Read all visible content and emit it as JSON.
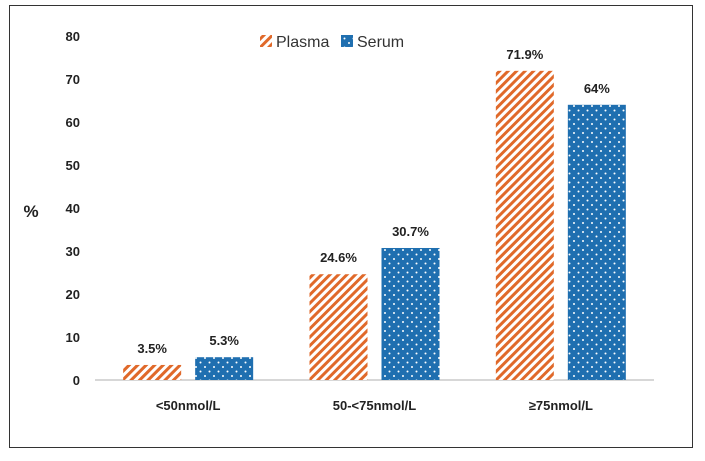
{
  "chart_data": {
    "type": "bar",
    "title": "",
    "xlabel": "",
    "ylabel": "%",
    "ylim": [
      0,
      80
    ],
    "yticks": [
      0,
      10,
      20,
      30,
      40,
      50,
      60,
      70,
      80
    ],
    "grid": false,
    "legend_position": "top-center",
    "categories": [
      "<50nmol/L",
      "50-<75nmol/L",
      "≥75nmol/L"
    ],
    "series": [
      {
        "name": "Plasma",
        "color": "#e0692a",
        "pattern": "diagonal-stripes",
        "values": [
          3.5,
          24.6,
          71.9
        ],
        "labels": [
          "3.5%",
          "24.6%",
          "71.9%"
        ]
      },
      {
        "name": "Serum",
        "color": "#1f6fb0",
        "pattern": "white-dots",
        "values": [
          5.3,
          30.7,
          64
        ],
        "labels": [
          "5.3%",
          "30.7%",
          "64%"
        ]
      }
    ]
  }
}
